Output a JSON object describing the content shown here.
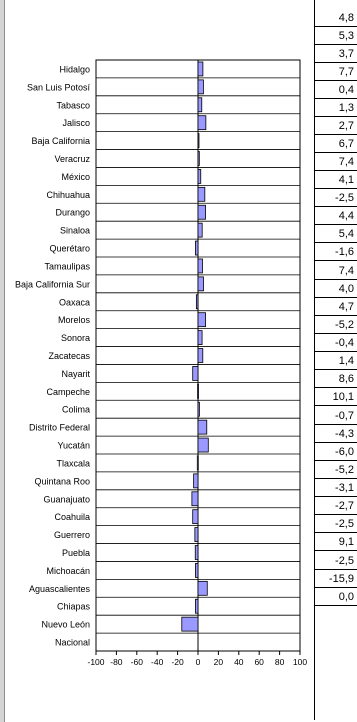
{
  "chart_data": {
    "type": "bar",
    "orientation": "horizontal",
    "categories": [
      "Hidalgo",
      "San Luis Potosí",
      "Tabasco",
      "Jalisco",
      "Baja California",
      "Veracruz",
      "México",
      "Chihuahua",
      "Durango",
      "Sinaloa",
      "Querétaro",
      "Tamaulipas",
      "Baja California Sur",
      "Oaxaca",
      "Morelos",
      "Sonora",
      "Zacatecas",
      "Nayarit",
      "Campeche",
      "Colima",
      "Distrito Federal",
      "Yucatán",
      "Tlaxcala",
      "Quintana Roo",
      "Guanajuato",
      "Coahuila",
      "Guerrero",
      "Puebla",
      "Michoacán",
      "Aguascalientes",
      "Chiapas",
      "Nuevo León",
      "Nacional"
    ],
    "values": [
      4.8,
      5.3,
      3.7,
      7.7,
      0.4,
      1.3,
      2.7,
      6.7,
      7.4,
      4.1,
      -2.5,
      4.4,
      5.4,
      -1.6,
      7.4,
      4.0,
      4.7,
      -5.2,
      -0.4,
      1.4,
      8.6,
      10.1,
      -0.7,
      -4.3,
      -6.0,
      -5.2,
      -3.1,
      -2.7,
      -2.5,
      9.1,
      -2.5,
      -15.9,
      0.0
    ],
    "value_labels": [
      "4,8",
      "5,3",
      "3,7",
      "7,7",
      "0,4",
      "1,3",
      "2,7",
      "6,7",
      "7,4",
      "4,1",
      "-2,5",
      "4,4",
      "5,4",
      "-1,6",
      "7,4",
      "4,0",
      "4,7",
      "-5,2",
      "-0,4",
      "1,4",
      "8,6",
      "10,1",
      "-0,7",
      "-4,3",
      "-6,0",
      "-5,2",
      "-3,1",
      "-2,7",
      "-2,5",
      "9,1",
      "-2,5",
      "-15,9",
      "0,0"
    ],
    "xlim": [
      -100,
      100
    ],
    "x_ticks": [
      "-100",
      "-80",
      "-60",
      "-40",
      "-20",
      "0",
      "20",
      "40",
      "60",
      "80",
      "100"
    ],
    "grid": false,
    "colors": {
      "bar_fill": "#9999ff",
      "bar_stroke": "#000000"
    }
  }
}
